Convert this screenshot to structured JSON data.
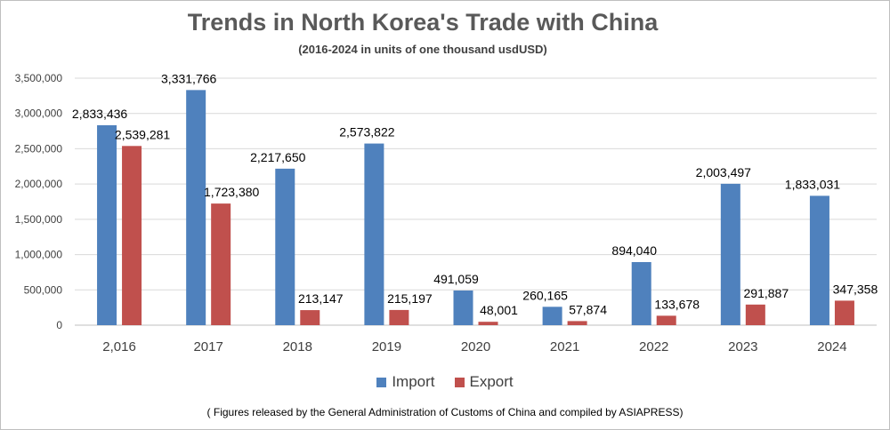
{
  "chart_data": {
    "type": "bar",
    "title": "Trends in North Korea's Trade with China",
    "subtitle": "(2016-2024 in units of one thousand usdUSD)",
    "categories": [
      "2,016",
      "2017",
      "2018",
      "2019",
      "2020",
      "2021",
      "2022",
      "2023",
      "2024"
    ],
    "series": [
      {
        "name": "Import",
        "color": "#4f81bd",
        "values": [
          2833436,
          3331766,
          2217650,
          2573822,
          491059,
          260165,
          894040,
          2003497,
          1833031
        ],
        "labels": [
          "2,833,436",
          "3,331,766",
          "2,217,650",
          "2,573,822",
          "491,059",
          "260,165",
          "894,040",
          "2,003,497",
          "1,833,031"
        ]
      },
      {
        "name": "Export",
        "color": "#c0504d",
        "values": [
          2539281,
          1723380,
          213147,
          215197,
          48001,
          57874,
          133678,
          291887,
          347358
        ],
        "labels": [
          "2,539,281",
          "1,723,380",
          "213,147",
          "215,197",
          "48,001",
          "57,874",
          "133,678",
          "291,887",
          "347,358"
        ]
      }
    ],
    "ylim": [
      0,
      3500000
    ],
    "yticks": [
      0,
      500000,
      1000000,
      1500000,
      2000000,
      2500000,
      3000000,
      3500000
    ],
    "ytick_labels": [
      "0",
      "500,000",
      "1,000,000",
      "1,500,000",
      "2,000,000",
      "2,500,000",
      "3,000,000",
      "3,500,000"
    ],
    "grid": true,
    "legend_position": "bottom"
  },
  "footnote": "( Figures released by the General Administration of Customs of China and compiled by ASIAPRESS)"
}
